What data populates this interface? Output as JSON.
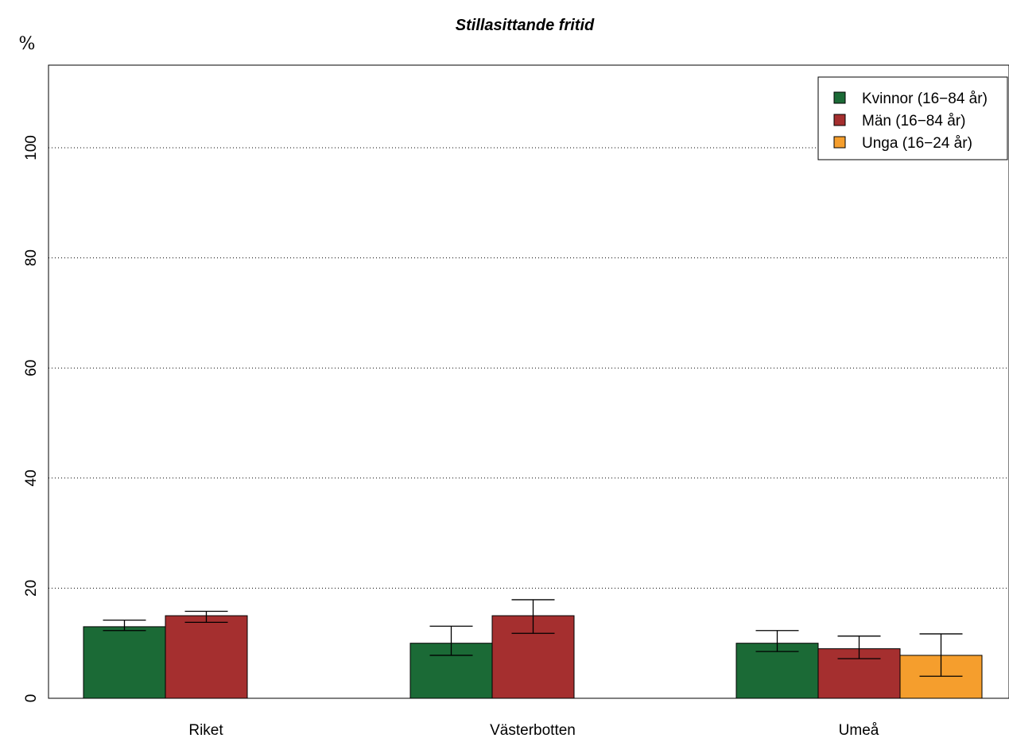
{
  "chart_data": {
    "type": "bar",
    "title": "Stillasittande fritid",
    "ylabel": "%",
    "xlabel": "",
    "categories": [
      "Riket",
      "Västerbotten",
      "Umeå"
    ],
    "ylim": [
      0,
      115
    ],
    "yticks": [
      0,
      20,
      40,
      60,
      80,
      100
    ],
    "grid": "horizontal dotted at y ticks above 0",
    "legend_position": "top-right",
    "series": [
      {
        "name": "Kvinnor (16−84 år)",
        "color": "#1b6a36",
        "values": [
          13,
          10,
          10
        ],
        "error_low": [
          12.3,
          7.8,
          8.5
        ],
        "error_high": [
          14.2,
          13.1,
          12.3
        ]
      },
      {
        "name": "Män (16−84 år)",
        "color": "#a52f2f",
        "values": [
          15,
          15,
          9
        ],
        "error_low": [
          13.8,
          11.8,
          7.2
        ],
        "error_high": [
          15.8,
          17.9,
          11.3
        ]
      },
      {
        "name": "Unga (16−24 år)",
        "color": "#f59e2d",
        "values": [
          null,
          null,
          7.8
        ],
        "error_low": [
          null,
          null,
          4
        ],
        "error_high": [
          null,
          null,
          11.7
        ]
      }
    ]
  }
}
